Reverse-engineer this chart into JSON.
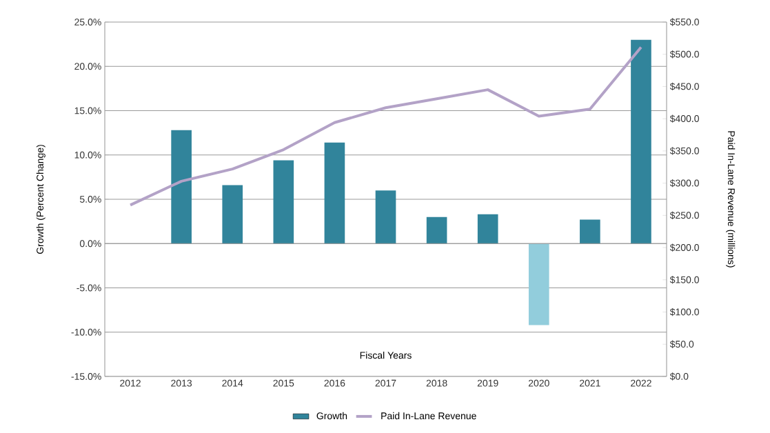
{
  "chart_data": {
    "type": "bar",
    "xlabel": "Fiscal Years",
    "ylabel": "Growth (Percent Change)",
    "y2label": "Paid In-Lane Revenue (millions)",
    "categories": [
      "2012",
      "2013",
      "2014",
      "2015",
      "2016",
      "2017",
      "2018",
      "2019",
      "2020",
      "2021",
      "2022"
    ],
    "series": [
      {
        "name": "Growth",
        "color": "#31849b",
        "colors": [
          "#31849b",
          "#31849b",
          "#31849b",
          "#31849b",
          "#31849b",
          "#31849b",
          "#31849b",
          "#31849b",
          "#92cddc",
          "#31849b",
          "#31849b"
        ],
        "values": [
          null,
          12.8,
          6.6,
          9.4,
          11.4,
          6.0,
          3.0,
          3.3,
          -9.2,
          2.7,
          23.0
        ]
      },
      {
        "name": "Paid In-Lane Revenue",
        "type": "line",
        "axis": "y2",
        "color": "#b3a2c7",
        "values": [
          266,
          303,
          322,
          352,
          394,
          417,
          431,
          445,
          404,
          415,
          511
        ]
      }
    ],
    "ylim": [
      -15,
      25
    ],
    "yticks": [
      {
        "value": -15,
        "label": "-15.0%"
      },
      {
        "value": -10,
        "label": "-10.0%"
      },
      {
        "value": -5,
        "label": "-5.0%"
      },
      {
        "value": 0,
        "label": "0.0%"
      },
      {
        "value": 5,
        "label": "5.0%"
      },
      {
        "value": 10,
        "label": "10.0%"
      },
      {
        "value": 15,
        "label": "15.0%"
      },
      {
        "value": 20,
        "label": "20.0%"
      },
      {
        "value": 25,
        "label": "25.0%"
      }
    ],
    "y2lim": [
      0,
      550
    ],
    "y2ticks": [
      {
        "value": 0,
        "label": "$0.0"
      },
      {
        "value": 50,
        "label": "$50.0"
      },
      {
        "value": 100,
        "label": "$100.0"
      },
      {
        "value": 150,
        "label": "$150.0"
      },
      {
        "value": 200,
        "label": "$200.0"
      },
      {
        "value": 250,
        "label": "$250.0"
      },
      {
        "value": 300,
        "label": "$300.0"
      },
      {
        "value": 350,
        "label": "$350.0"
      },
      {
        "value": 400,
        "label": "$400.0"
      },
      {
        "value": 450,
        "label": "$450.0"
      },
      {
        "value": 500,
        "label": "$500.0"
      },
      {
        "value": 550,
        "label": "$550.0"
      }
    ],
    "grid": "y",
    "legend": "bottom",
    "marker": "none",
    "line_style": "solid"
  }
}
